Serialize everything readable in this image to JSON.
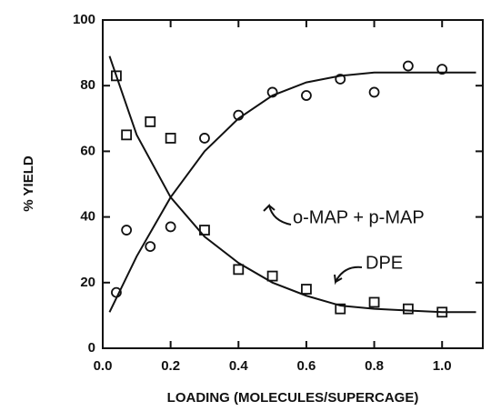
{
  "chart_data": {
    "type": "scatter",
    "x_label": "LOADING (MOLECULES/SUPERCAGE)",
    "y_label": "% YIELD",
    "xlim": [
      0,
      1.12
    ],
    "ylim": [
      0,
      100
    ],
    "xticks": [
      {
        "value": 0,
        "label": "0.0"
      },
      0.2,
      0.4,
      0.6,
      0.8,
      {
        "value": 1,
        "label": "1.0"
      }
    ],
    "yticks": [
      0,
      20,
      40,
      60,
      80,
      100
    ],
    "series": [
      {
        "name": "o-MAP + p-MAP",
        "mode": "markers",
        "marker": "circle",
        "color": "#111111",
        "x": [
          0.04,
          0.07,
          0.14,
          0.2,
          0.3,
          0.4,
          0.5,
          0.6,
          0.7,
          0.8,
          0.9,
          1.0
        ],
        "values": [
          17,
          36,
          31,
          37,
          64,
          71,
          78,
          77,
          82,
          78,
          86,
          85
        ]
      },
      {
        "name": "DPE",
        "mode": "markers",
        "marker": "square",
        "color": "#111111",
        "x": [
          0.04,
          0.07,
          0.14,
          0.2,
          0.3,
          0.4,
          0.5,
          0.6,
          0.7,
          0.8,
          0.9,
          1.0
        ],
        "values": [
          83,
          65,
          69,
          64,
          36,
          24,
          22,
          18,
          12,
          14,
          12,
          11
        ]
      },
      {
        "mode": "line",
        "color": "#111111",
        "x": [
          0.02,
          0.1,
          0.2,
          0.3,
          0.4,
          0.5,
          0.6,
          0.7,
          0.8,
          0.9,
          1.0,
          1.1
        ],
        "values": [
          11,
          28,
          46,
          60,
          70,
          77,
          81,
          83,
          84,
          84,
          84,
          84
        ]
      },
      {
        "mode": "line",
        "color": "#111111",
        "x": [
          0.02,
          0.1,
          0.2,
          0.3,
          0.4,
          0.5,
          0.6,
          0.7,
          0.8,
          0.9,
          1.0,
          1.1
        ],
        "values": [
          89,
          65,
          46,
          34,
          26,
          20,
          16,
          13,
          12,
          11.5,
          11,
          11
        ]
      }
    ]
  }
}
